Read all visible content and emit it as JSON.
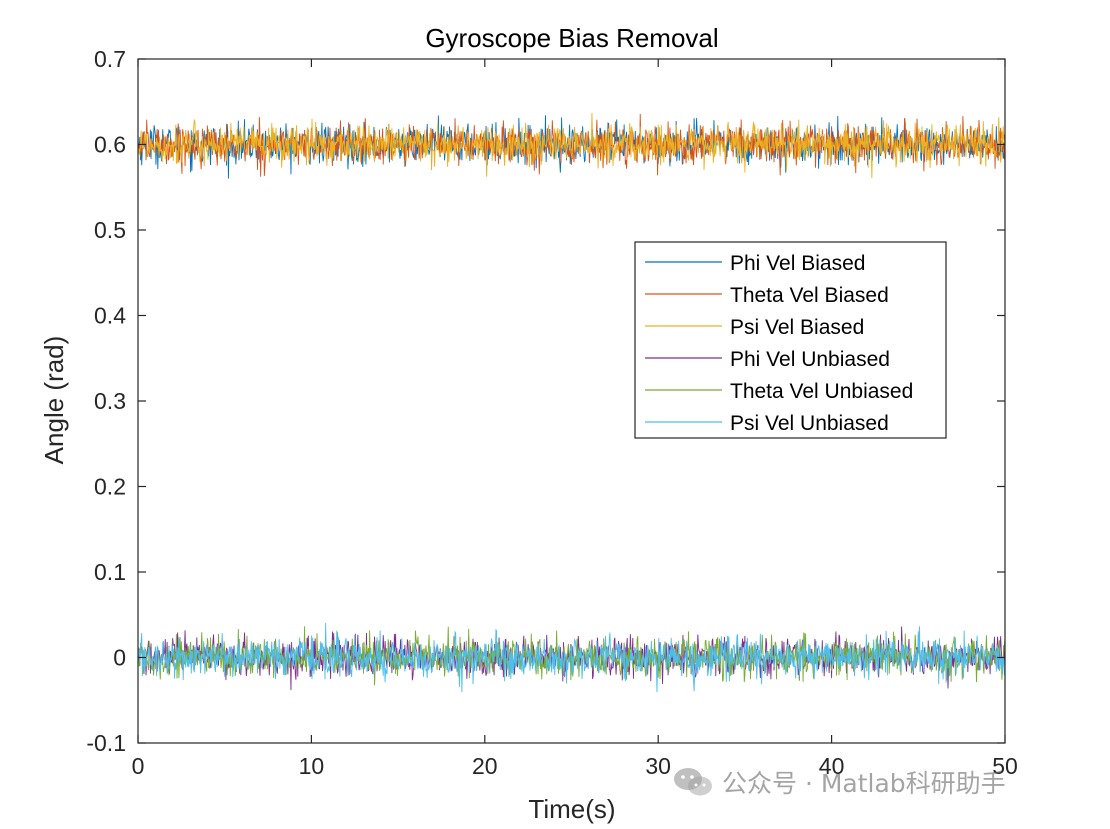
{
  "chart_data": {
    "type": "line",
    "title": "Gyroscope Bias Removal",
    "xlabel": "Time(s)",
    "ylabel": "Angle (rad)",
    "xlim": [
      0,
      50
    ],
    "ylim": [
      -0.1,
      0.7
    ],
    "xticks": [
      0,
      10,
      20,
      30,
      40,
      50
    ],
    "xtick_labels": [
      "0",
      "10",
      "20",
      "30",
      "40",
      "50"
    ],
    "yticks": [
      -0.1,
      0,
      0.1,
      0.2,
      0.3,
      0.4,
      0.5,
      0.6,
      0.7
    ],
    "ytick_labels": [
      "-0.1",
      "0",
      "0.1",
      "0.2",
      "0.3",
      "0.4",
      "0.5",
      "0.6",
      "0.7"
    ],
    "grid": false,
    "legend_position": "upper-right",
    "noise_amplitude": 0.03,
    "series": [
      {
        "name": "Phi Vel Biased",
        "mean": 0.6,
        "color": "#0072BD"
      },
      {
        "name": "Theta Vel Biased",
        "mean": 0.6,
        "color": "#D95319"
      },
      {
        "name": "Psi Vel Biased",
        "mean": 0.6,
        "color": "#EDB120"
      },
      {
        "name": "Phi Vel Unbiased",
        "mean": 0.0,
        "color": "#7E2F8E"
      },
      {
        "name": "Theta Vel Unbiased",
        "mean": 0.0,
        "color": "#77AC30"
      },
      {
        "name": "Psi Vel Unbiased",
        "mean": 0.0,
        "color": "#4DBEEE"
      }
    ]
  },
  "watermark": {
    "text": "公众号 · Matlab科研助手",
    "icon": "wechat-icon"
  }
}
